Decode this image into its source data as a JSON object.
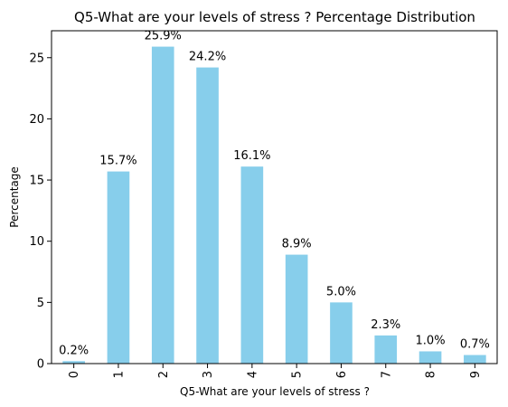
{
  "chart_data": {
    "type": "bar",
    "title": "Q5-What are your levels of stress ? Percentage Distribution",
    "xlabel": "Q5-What are your levels of stress ?",
    "ylabel": "Percentage",
    "categories": [
      "0",
      "1",
      "2",
      "3",
      "4",
      "5",
      "6",
      "7",
      "8",
      "9"
    ],
    "values": [
      0.2,
      15.7,
      25.9,
      24.2,
      16.1,
      8.9,
      5.0,
      2.3,
      1.0,
      0.7
    ],
    "data_labels": [
      "0.2%",
      "15.7%",
      "25.9%",
      "24.2%",
      "16.1%",
      "8.9%",
      "5.0%",
      "2.3%",
      "1.0%",
      "0.7%"
    ],
    "yticks": [
      0,
      5,
      10,
      15,
      20,
      25
    ],
    "ylim": [
      0,
      27.2
    ],
    "grid": false,
    "bar_color": "#87CEEB"
  }
}
